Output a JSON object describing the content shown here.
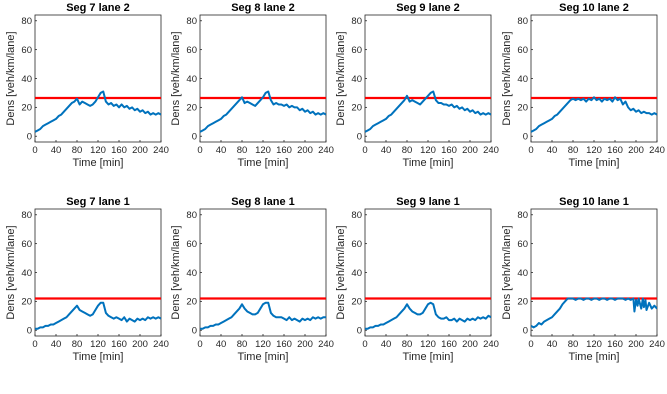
{
  "colors": {
    "series": "#0072BD",
    "threshold": "#FF0000",
    "axis": "#262626",
    "background": "#FFFFFF"
  },
  "chart_data": [
    {
      "type": "line",
      "title": "Seg 7 lane 2",
      "xlabel": "Time [min]",
      "ylabel": "Dens [veh/km/lane]",
      "xlim": [
        0,
        240
      ],
      "ylim": [
        -4,
        84
      ],
      "xticks": [
        0,
        40,
        80,
        120,
        160,
        200,
        240
      ],
      "yticks": [
        0,
        20,
        40,
        60,
        80
      ],
      "threshold": 26.5,
      "series": [
        {
          "x": [
            0,
            5,
            10,
            15,
            20,
            25,
            30,
            35,
            40,
            45,
            50,
            55,
            60,
            65,
            70,
            75,
            80,
            85,
            90,
            95,
            100,
            105,
            110,
            115,
            120,
            125,
            130,
            135,
            140,
            145,
            150,
            155,
            160,
            165,
            170,
            175,
            180,
            185,
            190,
            195,
            200,
            205,
            210,
            215,
            220,
            225,
            230,
            235,
            240
          ],
          "y": [
            3,
            4,
            5,
            7,
            8,
            9,
            10,
            11,
            12,
            14,
            15,
            17,
            19,
            21,
            23,
            24,
            26,
            22,
            24,
            23,
            22,
            21,
            22,
            24,
            27,
            30,
            31,
            24,
            22,
            23,
            21,
            22,
            20,
            22,
            20,
            21,
            19,
            20,
            18,
            19,
            17,
            18,
            16,
            17,
            15,
            16,
            15,
            16,
            15
          ]
        }
      ]
    },
    {
      "type": "line",
      "title": "Seg 8 lane 2",
      "xlabel": "Time [min]",
      "ylabel": "Dens [veh/km/lane]",
      "xlim": [
        0,
        240
      ],
      "ylim": [
        -4,
        84
      ],
      "xticks": [
        0,
        40,
        80,
        120,
        160,
        200,
        240
      ],
      "yticks": [
        0,
        20,
        40,
        60,
        80
      ],
      "threshold": 26.5,
      "series": [
        {
          "x": [
            0,
            5,
            10,
            15,
            20,
            25,
            30,
            35,
            40,
            45,
            50,
            55,
            60,
            65,
            70,
            75,
            80,
            85,
            90,
            95,
            100,
            105,
            110,
            115,
            120,
            125,
            130,
            135,
            140,
            145,
            150,
            155,
            160,
            165,
            170,
            175,
            180,
            185,
            190,
            195,
            200,
            205,
            210,
            215,
            220,
            225,
            230,
            235,
            240
          ],
          "y": [
            3,
            4,
            5,
            7,
            8,
            9,
            10,
            11,
            12,
            14,
            15,
            17,
            19,
            21,
            23,
            25,
            27,
            23,
            24,
            23,
            22,
            21,
            23,
            25,
            27,
            30,
            31,
            25,
            22,
            23,
            22,
            22,
            21,
            22,
            20,
            21,
            20,
            20,
            18,
            19,
            17,
            18,
            16,
            17,
            15,
            16,
            15,
            16,
            15
          ]
        }
      ]
    },
    {
      "type": "line",
      "title": "Seg 9 lane 2",
      "xlabel": "Time [min]",
      "ylabel": "Dens [veh/km/lane]",
      "xlim": [
        0,
        240
      ],
      "ylim": [
        -4,
        84
      ],
      "xticks": [
        0,
        40,
        80,
        120,
        160,
        200,
        240
      ],
      "yticks": [
        0,
        20,
        40,
        60,
        80
      ],
      "threshold": 26.5,
      "series": [
        {
          "x": [
            0,
            5,
            10,
            15,
            20,
            25,
            30,
            35,
            40,
            45,
            50,
            55,
            60,
            65,
            70,
            75,
            80,
            85,
            90,
            95,
            100,
            105,
            110,
            115,
            120,
            125,
            130,
            135,
            140,
            145,
            150,
            155,
            160,
            165,
            170,
            175,
            180,
            185,
            190,
            195,
            200,
            205,
            210,
            215,
            220,
            225,
            230,
            235,
            240
          ],
          "y": [
            3,
            4,
            5,
            7,
            8,
            9,
            10,
            11,
            12,
            14,
            15,
            17,
            19,
            21,
            23,
            25,
            28,
            24,
            25,
            24,
            23,
            22,
            24,
            26,
            28,
            30,
            31,
            25,
            23,
            23,
            22,
            22,
            21,
            22,
            20,
            21,
            19,
            20,
            18,
            19,
            17,
            18,
            16,
            17,
            15,
            16,
            15,
            16,
            15
          ]
        }
      ]
    },
    {
      "type": "line",
      "title": "Seg 10 lane 2",
      "xlabel": "Time [min]",
      "ylabel": "Dens [veh/km/lane]",
      "xlim": [
        0,
        240
      ],
      "ylim": [
        -4,
        84
      ],
      "xticks": [
        0,
        40,
        80,
        120,
        160,
        200,
        240
      ],
      "yticks": [
        0,
        20,
        40,
        60,
        80
      ],
      "threshold": 26.5,
      "series": [
        {
          "x": [
            0,
            5,
            10,
            15,
            20,
            25,
            30,
            35,
            40,
            45,
            50,
            55,
            60,
            65,
            70,
            75,
            80,
            85,
            90,
            95,
            100,
            105,
            110,
            115,
            120,
            125,
            130,
            135,
            140,
            145,
            150,
            155,
            160,
            165,
            170,
            175,
            180,
            185,
            190,
            195,
            200,
            205,
            210,
            215,
            220,
            225,
            230,
            235,
            240
          ],
          "y": [
            3,
            4,
            5,
            7,
            8,
            9,
            10,
            11,
            12,
            14,
            15,
            17,
            19,
            21,
            23,
            25,
            26,
            25,
            26,
            25,
            26,
            24,
            26,
            25,
            27,
            25,
            26,
            24,
            26,
            25,
            26,
            24,
            27,
            25,
            26,
            22,
            24,
            20,
            18,
            19,
            17,
            18,
            16,
            17,
            16,
            16,
            15,
            16,
            15
          ]
        }
      ]
    },
    {
      "type": "line",
      "title": "Seg 7 lane 1",
      "xlabel": "Time [min]",
      "ylabel": "Dens [veh/km/lane]",
      "xlim": [
        0,
        240
      ],
      "ylim": [
        -4,
        84
      ],
      "xticks": [
        0,
        40,
        80,
        120,
        160,
        200,
        240
      ],
      "yticks": [
        0,
        20,
        40,
        60,
        80
      ],
      "threshold": 22,
      "series": [
        {
          "x": [
            0,
            5,
            10,
            15,
            20,
            25,
            30,
            35,
            40,
            45,
            50,
            55,
            60,
            65,
            70,
            75,
            80,
            85,
            90,
            95,
            100,
            105,
            110,
            115,
            120,
            125,
            130,
            135,
            140,
            145,
            150,
            155,
            160,
            165,
            170,
            175,
            180,
            185,
            190,
            195,
            200,
            205,
            210,
            215,
            220,
            225,
            230,
            235,
            240
          ],
          "y": [
            1,
            1,
            2,
            2,
            3,
            3,
            4,
            4,
            5,
            6,
            7,
            8,
            9,
            11,
            13,
            15,
            17,
            14,
            13,
            12,
            11,
            10,
            11,
            14,
            17,
            19,
            19,
            12,
            10,
            9,
            8,
            9,
            8,
            7,
            9,
            6,
            8,
            7,
            6,
            8,
            7,
            8,
            7,
            9,
            8,
            9,
            8,
            9,
            8
          ]
        }
      ]
    },
    {
      "type": "line",
      "title": "Seg 8 lane 1",
      "xlabel": "Time [min]",
      "ylabel": "Dens [veh/km/lane]",
      "xlim": [
        0,
        240
      ],
      "ylim": [
        -4,
        84
      ],
      "xticks": [
        0,
        40,
        80,
        120,
        160,
        200,
        240
      ],
      "yticks": [
        0,
        20,
        40,
        60,
        80
      ],
      "threshold": 22,
      "series": [
        {
          "x": [
            0,
            5,
            10,
            15,
            20,
            25,
            30,
            35,
            40,
            45,
            50,
            55,
            60,
            65,
            70,
            75,
            80,
            85,
            90,
            95,
            100,
            105,
            110,
            115,
            120,
            125,
            130,
            135,
            140,
            145,
            150,
            155,
            160,
            165,
            170,
            175,
            180,
            185,
            190,
            195,
            200,
            205,
            210,
            215,
            220,
            225,
            230,
            235,
            240
          ],
          "y": [
            1,
            1,
            2,
            2,
            3,
            3,
            4,
            4,
            5,
            6,
            7,
            8,
            9,
            11,
            13,
            15,
            18,
            15,
            13,
            12,
            11,
            11,
            12,
            15,
            18,
            19,
            19,
            12,
            10,
            9,
            9,
            9,
            8,
            7,
            9,
            7,
            8,
            7,
            6,
            8,
            7,
            8,
            7,
            9,
            8,
            9,
            8,
            9,
            9
          ]
        }
      ]
    },
    {
      "type": "line",
      "title": "Seg 9 lane 1",
      "xlabel": "Time [min]",
      "ylabel": "Dens [veh/km/lane]",
      "xlim": [
        0,
        240
      ],
      "ylim": [
        -4,
        84
      ],
      "xticks": [
        0,
        40,
        80,
        120,
        160,
        200,
        240
      ],
      "yticks": [
        0,
        20,
        40,
        60,
        80
      ],
      "threshold": 22,
      "series": [
        {
          "x": [
            0,
            5,
            10,
            15,
            20,
            25,
            30,
            35,
            40,
            45,
            50,
            55,
            60,
            65,
            70,
            75,
            80,
            85,
            90,
            95,
            100,
            105,
            110,
            115,
            120,
            125,
            130,
            135,
            140,
            145,
            150,
            155,
            160,
            165,
            170,
            175,
            180,
            185,
            190,
            195,
            200,
            205,
            210,
            215,
            220,
            225,
            230,
            235,
            240
          ],
          "y": [
            1,
            1,
            2,
            2,
            3,
            3,
            4,
            4,
            5,
            6,
            7,
            8,
            9,
            11,
            13,
            15,
            18,
            15,
            13,
            12,
            11,
            11,
            12,
            15,
            18,
            19,
            18,
            11,
            9,
            8,
            8,
            9,
            7,
            7,
            8,
            6,
            8,
            7,
            6,
            8,
            7,
            8,
            7,
            9,
            8,
            9,
            8,
            10,
            9
          ]
        }
      ]
    },
    {
      "type": "line",
      "title": "Seg 10 lane 1",
      "xlabel": "Time [min]",
      "ylabel": "Dens [veh/km/lane]",
      "xlim": [
        0,
        240
      ],
      "ylim": [
        -4,
        84
      ],
      "xticks": [
        0,
        40,
        80,
        120,
        160,
        200,
        240
      ],
      "yticks": [
        0,
        20,
        40,
        60,
        80
      ],
      "threshold": 22,
      "series": [
        {
          "x": [
            0,
            5,
            10,
            15,
            20,
            25,
            30,
            35,
            40,
            45,
            50,
            55,
            60,
            65,
            70,
            75,
            80,
            85,
            90,
            95,
            100,
            105,
            110,
            115,
            120,
            125,
            130,
            135,
            140,
            145,
            150,
            155,
            160,
            165,
            170,
            175,
            180,
            185,
            190,
            195,
            197,
            200,
            203,
            205,
            210,
            213,
            215,
            218,
            220,
            225,
            230,
            235,
            240
          ],
          "y": [
            3,
            2,
            3,
            5,
            4,
            6,
            7,
            8,
            9,
            11,
            13,
            15,
            18,
            20,
            22,
            22,
            22,
            21,
            22,
            22,
            21,
            22,
            22,
            21,
            22,
            22,
            21,
            22,
            22,
            21,
            22,
            22,
            21,
            22,
            22,
            22,
            21,
            22,
            21,
            22,
            13,
            21,
            17,
            22,
            15,
            22,
            16,
            21,
            14,
            19,
            15,
            17,
            15
          ]
        }
      ]
    }
  ]
}
